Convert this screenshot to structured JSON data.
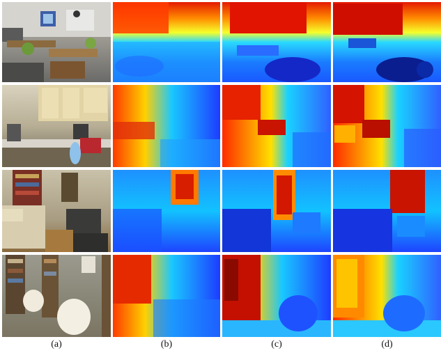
{
  "figure": {
    "column_labels": [
      "(a)",
      "(b)",
      "(c)",
      "(d)"
    ],
    "rows": [
      {
        "scene": "classroom"
      },
      {
        "scene": "kitchen"
      },
      {
        "scene": "living-room"
      },
      {
        "scene": "bookshelf-room"
      }
    ],
    "colormap": {
      "near": "#0000c8",
      "mid": "#00e0ff",
      "far": "#ff1e00"
    }
  }
}
